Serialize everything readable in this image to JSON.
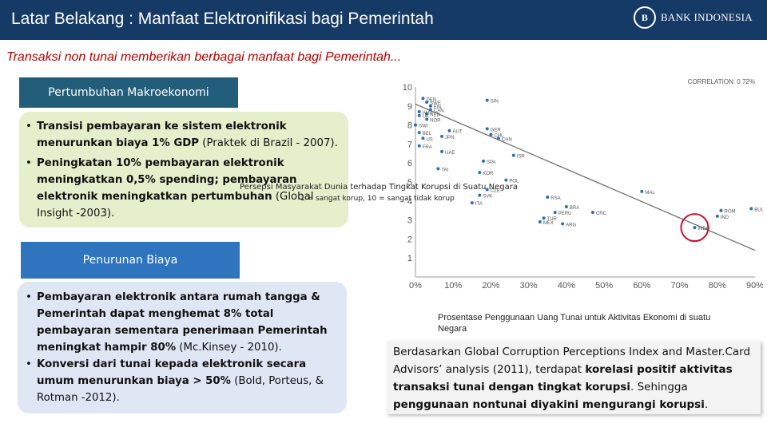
{
  "header": {
    "title": "Latar Belakang : Manfaat Elektronifikasi bagi Pemerintah",
    "logo_mark": "B",
    "logo_text": "BANK INDONESIA",
    "background": "#163a66"
  },
  "subtitle": "Transaksi non tunai memberikan berbagai manfaat bagi Pemerintah...",
  "section1": {
    "title": "Pertumbuhan Makroekonomi",
    "bullets": [
      {
        "text_bold": "Transisi pembayaran ke sistem elektronik menurunkan biaya 1% GDP",
        "text_normal": " (Praktek di Brazil - 2007)."
      },
      {
        "text_bold": "Peningkatan 10% pembayaran elektronik meningkatkan 0,5% spending; pembayaran elektronik meningkatkan pertumbuhan",
        "text_normal": " (Global Insight -2003)."
      }
    ]
  },
  "section2": {
    "title": "Penurunan Biaya",
    "bullets": [
      {
        "text_bold": "Pembayaran elektronik antara rumah tangga & Pemerintah dapat menghemat 8% total pembayaran sementara penerimaan Pemerintah meningkat hampir 80%",
        "text_normal": " (Mc.Kinsey - 2010)."
      },
      {
        "text_bold": "Konversi dari tunai kepada elektronik secara umum menurunkan biaya > 50%",
        "text_normal": " (Bold, Porteus, & Rotman -2012)."
      }
    ]
  },
  "chart_overlay_labels": {
    "ylabel": "Persepsi Masyarakat Dunia terhadap Tingkat Korupsi di Suatu Negara",
    "yscale_note": "1 = sangat korup, 10 = sangat tidak korup"
  },
  "chart_data": {
    "type": "scatter",
    "correlation_label": "CORRELATION: 0.72%",
    "x_ticks": [
      "0%",
      "10%",
      "20%",
      "30%",
      "40%",
      "50%",
      "60%",
      "70%",
      "80%",
      "90%"
    ],
    "y_ticks": [
      "1",
      "2",
      "3",
      "4",
      "5",
      "6",
      "7",
      "8",
      "9",
      "10"
    ],
    "xlim": [
      0,
      90
    ],
    "ylim": [
      0,
      10
    ],
    "trend_line": [
      [
        0,
        9.1
      ],
      [
        90,
        1.4
      ]
    ],
    "highlight": {
      "label": "INDO",
      "x": 74,
      "y": 2.6
    },
    "points": [
      {
        "label": "DEN",
        "x": 2,
        "y": 9.4
      },
      {
        "label": "SWE",
        "x": 3,
        "y": 9.2
      },
      {
        "label": "FIN",
        "x": 4,
        "y": 9.0
      },
      {
        "label": "CAN",
        "x": 4,
        "y": 8.8
      },
      {
        "label": "NED",
        "x": 3,
        "y": 8.6
      },
      {
        "label": "AUS",
        "x": 1,
        "y": 8.7
      },
      {
        "label": "UK",
        "x": 1,
        "y": 8.5
      },
      {
        "label": "NOR",
        "x": 3,
        "y": 8.3
      },
      {
        "label": "SWI",
        "x": 0,
        "y": 8.0
      },
      {
        "label": "BEL",
        "x": 1,
        "y": 7.6
      },
      {
        "label": "US",
        "x": 2,
        "y": 7.3
      },
      {
        "label": "AUT",
        "x": 9,
        "y": 7.7
      },
      {
        "label": "JPN",
        "x": 7,
        "y": 7.4
      },
      {
        "label": "SIN",
        "x": 19,
        "y": 9.3
      },
      {
        "label": "GER",
        "x": 19,
        "y": 7.8
      },
      {
        "label": "CHL",
        "x": 20,
        "y": 7.5
      },
      {
        "label": "CHN",
        "x": 22,
        "y": 7.3
      },
      {
        "label": "FRA",
        "x": 1,
        "y": 6.9
      },
      {
        "label": "UAE",
        "x": 7,
        "y": 6.6
      },
      {
        "label": "ISR",
        "x": 26,
        "y": 6.4
      },
      {
        "label": "SPA",
        "x": 18,
        "y": 6.1
      },
      {
        "label": "TAI",
        "x": 6,
        "y": 5.7
      },
      {
        "label": "KOR",
        "x": 17,
        "y": 5.5
      },
      {
        "label": "POL",
        "x": 24,
        "y": 5.1
      },
      {
        "label": "CZE",
        "x": 19,
        "y": 4.6
      },
      {
        "label": "SVK",
        "x": 17,
        "y": 4.3
      },
      {
        "label": "ITA",
        "x": 15,
        "y": 3.9
      },
      {
        "label": "RSA",
        "x": 35,
        "y": 4.2
      },
      {
        "label": "MAL",
        "x": 60,
        "y": 4.5
      },
      {
        "label": "BRA",
        "x": 40,
        "y": 3.7
      },
      {
        "label": "PERU",
        "x": 37,
        "y": 3.4
      },
      {
        "label": "CRC",
        "x": 47,
        "y": 3.4
      },
      {
        "label": "TUR",
        "x": 34,
        "y": 3.1
      },
      {
        "label": "MEX",
        "x": 33,
        "y": 2.9
      },
      {
        "label": "ARG",
        "x": 39,
        "y": 2.8
      },
      {
        "label": "INDO",
        "x": 74,
        "y": 2.6
      },
      {
        "label": "ROM",
        "x": 81,
        "y": 3.5
      },
      {
        "label": "IND",
        "x": 80,
        "y": 3.2
      },
      {
        "label": "BUL",
        "x": 89,
        "y": 3.6
      }
    ]
  },
  "chart_caption": "Prosentase Penggunaan Uang Tunai untuk Aktivitas Ekonomi di suatu Negara",
  "infobox": {
    "normal1": "Berdasarkan Global Corruption Perceptions Index and Master.Card Advisors’ analysis (2011), terdapat ",
    "bold": "korelasi positif aktivitas transaksi tunai dengan tingkat korupsi",
    "normal2": ". Sehingga ",
    "bold2": "penggunaan nontunai diyakini mengurangi korupsi",
    "normal3": "."
  }
}
